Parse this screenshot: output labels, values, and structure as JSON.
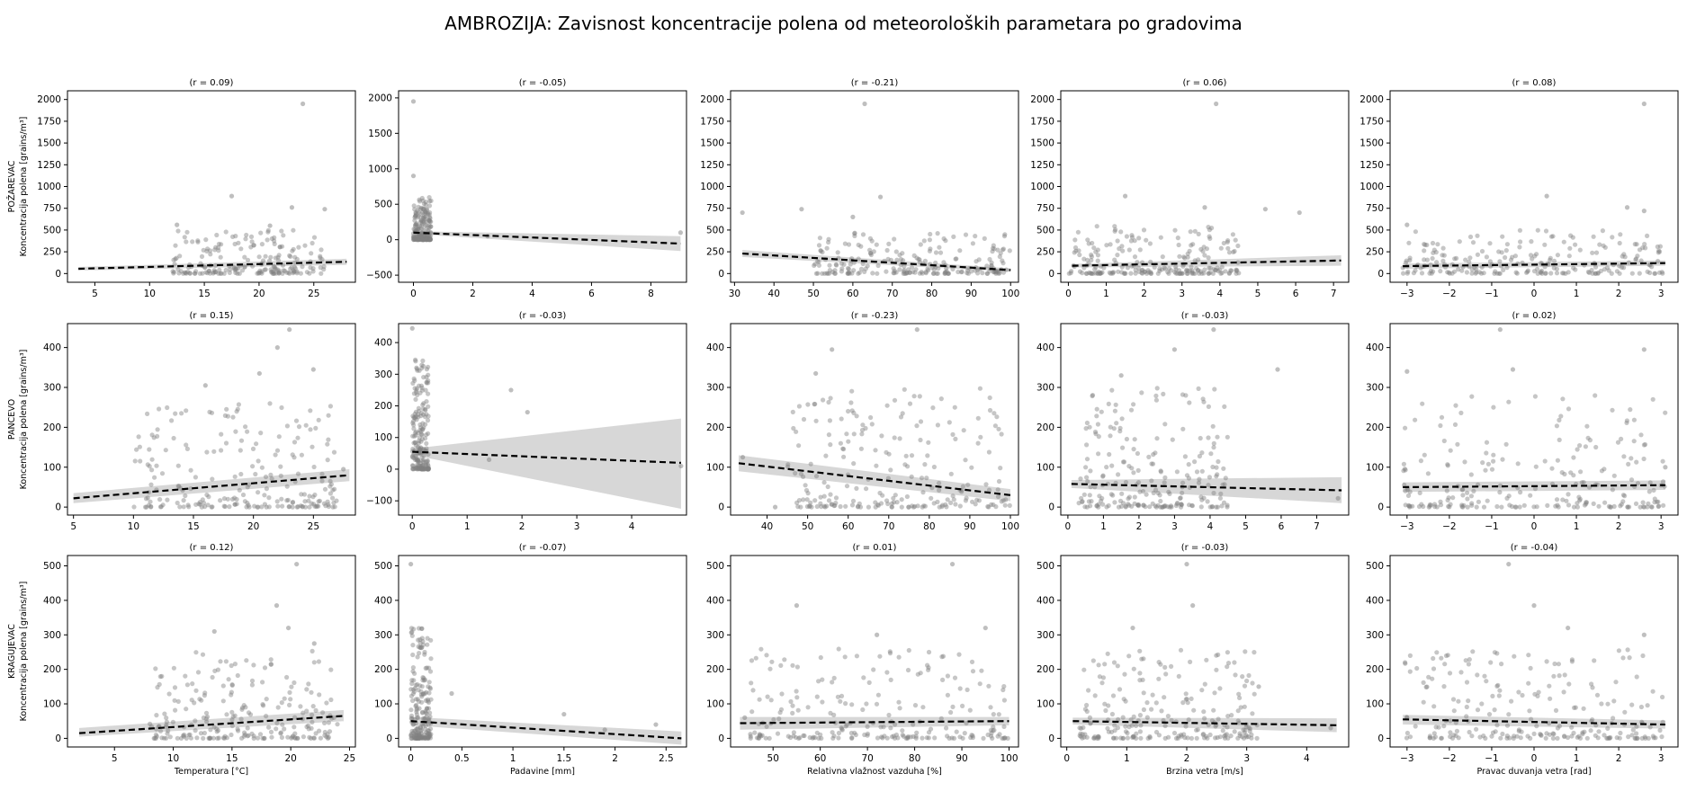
{
  "figure_title": "AMBROZIJA: Zavisnost koncentracije polena od meteoroloških parametara po gradovima",
  "colors": {
    "points": "#808080",
    "regression_line": "#000000",
    "confidence_band": "#d3d3d3"
  },
  "chart_data": [
    {
      "type": "scatter",
      "city": "POŽAREVAC",
      "ylabel": "Koncentracija polena [grains/m³]",
      "annotation": "(r = 0.09)",
      "xlim": [
        2.5,
        28.8
      ],
      "ylim": [
        -100,
        2100
      ],
      "xticks": [
        5,
        10,
        15,
        20,
        25
      ],
      "yticks": [
        0,
        250,
        500,
        750,
        1000,
        1250,
        1500,
        1750,
        2000
      ],
      "regression": {
        "x": [
          3.5,
          28
        ],
        "y": [
          55,
          135
        ]
      },
      "band": [
        35,
        75,
        100,
        170
      ],
      "outliers": [
        [
          24,
          1950
        ],
        [
          17.5,
          890
        ],
        [
          23,
          760
        ],
        [
          26,
          740
        ],
        [
          12.5,
          560
        ],
        [
          21,
          550
        ]
      ],
      "cloud": {
        "x": [
          12,
          26
        ],
        "y": [
          0,
          500
        ],
        "n": 200
      }
    },
    {
      "type": "scatter",
      "city": "POŽAREVAC",
      "ylabel": "",
      "annotation": "(r = -0.05)",
      "xlim": [
        -0.5,
        9.2
      ],
      "ylim": [
        -600,
        2100
      ],
      "xticks": [
        0,
        2,
        4,
        6,
        8
      ],
      "yticks": [
        -500,
        0,
        500,
        1000,
        1500,
        2000
      ],
      "regression": {
        "x": [
          0,
          9
        ],
        "y": [
          100,
          -55
        ]
      },
      "band": [
        80,
        120,
        -160,
        50
      ],
      "outliers": [
        [
          0,
          1950
        ],
        [
          0,
          900
        ],
        [
          9,
          100
        ],
        [
          2.5,
          50
        ]
      ],
      "cloud": {
        "x": [
          0,
          0.6
        ],
        "y": [
          0,
          600
        ],
        "n": 200
      }
    },
    {
      "type": "scatter",
      "city": "POŽAREVAC",
      "ylabel": "",
      "annotation": "(r = -0.21)",
      "xlim": [
        29,
        102
      ],
      "ylim": [
        -100,
        2100
      ],
      "xticks": [
        30,
        40,
        50,
        60,
        70,
        80,
        90,
        100
      ],
      "yticks": [
        0,
        250,
        500,
        750,
        1000,
        1250,
        1500,
        1750,
        2000
      ],
      "regression": {
        "x": [
          32,
          100
        ],
        "y": [
          230,
          40
        ]
      },
      "band": [
        190,
        270,
        20,
        60
      ],
      "outliers": [
        [
          63,
          1950
        ],
        [
          67,
          880
        ],
        [
          47,
          740
        ],
        [
          32,
          700
        ],
        [
          60,
          650
        ]
      ],
      "cloud": {
        "x": [
          50,
          100
        ],
        "y": [
          0,
          500
        ],
        "n": 220
      }
    },
    {
      "type": "scatter",
      "city": "POŽAREVAC",
      "ylabel": "",
      "annotation": "(r = 0.06)",
      "xlim": [
        -0.2,
        7.4
      ],
      "ylim": [
        -100,
        2100
      ],
      "xticks": [
        0,
        1,
        2,
        3,
        4,
        5,
        6,
        7
      ],
      "yticks": [
        0,
        250,
        500,
        750,
        1000,
        1250,
        1500,
        1750,
        2000
      ],
      "regression": {
        "x": [
          0.1,
          7.2
        ],
        "y": [
          90,
          150
        ]
      },
      "band": [
        70,
        110,
        90,
        210
      ],
      "outliers": [
        [
          3.9,
          1950
        ],
        [
          1.5,
          890
        ],
        [
          3.6,
          760
        ],
        [
          5.2,
          740
        ],
        [
          6.1,
          700
        ]
      ],
      "cloud": {
        "x": [
          0,
          4.5
        ],
        "y": [
          0,
          550
        ],
        "n": 220
      }
    },
    {
      "type": "scatter",
      "city": "POŽAREVAC",
      "ylabel": "",
      "annotation": "(r = 0.08)",
      "xlim": [
        -3.4,
        3.4
      ],
      "ylim": [
        -100,
        2100
      ],
      "xticks": [
        -3,
        -2,
        -1,
        0,
        1,
        2,
        3
      ],
      "yticks": [
        0,
        250,
        500,
        750,
        1000,
        1250,
        1500,
        1750,
        2000
      ],
      "regression": {
        "x": [
          -3.1,
          3.1
        ],
        "y": [
          85,
          120
        ]
      },
      "band": [
        55,
        115,
        90,
        150
      ],
      "outliers": [
        [
          2.6,
          1950
        ],
        [
          0.3,
          890
        ],
        [
          2.2,
          760
        ],
        [
          2.6,
          720
        ],
        [
          -3,
          560
        ]
      ],
      "cloud": {
        "x": [
          -3.1,
          3.1
        ],
        "y": [
          0,
          500
        ],
        "n": 220
      }
    },
    {
      "type": "scatter",
      "city": "PANCEVO",
      "ylabel": "Koncentracija polena [grains/m³]",
      "annotation": "(r = 0.15)",
      "xlim": [
        4.5,
        28.5
      ],
      "ylim": [
        -20,
        460
      ],
      "xticks": [
        5,
        10,
        15,
        20,
        25
      ],
      "yticks": [
        0,
        100,
        200,
        300,
        400
      ],
      "regression": {
        "x": [
          5,
          28
        ],
        "y": [
          22,
          80
        ]
      },
      "band": [
        10,
        35,
        65,
        95
      ],
      "outliers": [
        [
          23,
          445
        ],
        [
          22,
          400
        ],
        [
          25,
          345
        ],
        [
          16,
          305
        ],
        [
          20.5,
          335
        ],
        [
          27.5,
          95
        ]
      ],
      "cloud": {
        "x": [
          10,
          27
        ],
        "y": [
          0,
          260
        ],
        "n": 220
      }
    },
    {
      "type": "scatter",
      "city": "PANCEVO",
      "ylabel": "",
      "annotation": "(r = -0.03)",
      "xlim": [
        -0.25,
        5.0
      ],
      "ylim": [
        -145,
        460
      ],
      "xticks": [
        0,
        1,
        2,
        3,
        4
      ],
      "yticks": [
        -100,
        0,
        100,
        200,
        300,
        400
      ],
      "regression": {
        "x": [
          0,
          4.9
        ],
        "y": [
          55,
          20
        ]
      },
      "band": [
        45,
        65,
        -125,
        160
      ],
      "outliers": [
        [
          0,
          445
        ],
        [
          1.8,
          250
        ],
        [
          2.1,
          180
        ],
        [
          4.9,
          10
        ],
        [
          1.4,
          30
        ]
      ],
      "cloud": {
        "x": [
          0,
          0.3
        ],
        "y": [
          0,
          350
        ],
        "n": 200
      }
    },
    {
      "type": "scatter",
      "city": "PANCEVO",
      "ylabel": "",
      "annotation": "(r = -0.23)",
      "xlim": [
        31,
        102
      ],
      "ylim": [
        -20,
        460
      ],
      "xticks": [
        40,
        50,
        60,
        70,
        80,
        90,
        100
      ],
      "yticks": [
        0,
        100,
        200,
        300,
        400
      ],
      "regression": {
        "x": [
          33,
          100
        ],
        "y": [
          110,
          30
        ]
      },
      "band": [
        90,
        130,
        15,
        45
      ],
      "outliers": [
        [
          77,
          445
        ],
        [
          56,
          395
        ],
        [
          52,
          335
        ],
        [
          34,
          125
        ],
        [
          42,
          0
        ]
      ],
      "cloud": {
        "x": [
          45,
          100
        ],
        "y": [
          0,
          300
        ],
        "n": 220
      }
    },
    {
      "type": "scatter",
      "city": "PANCEVO",
      "ylabel": "",
      "annotation": "(r = -0.03)",
      "xlim": [
        -0.2,
        7.9
      ],
      "ylim": [
        -20,
        460
      ],
      "xticks": [
        0,
        1,
        2,
        3,
        4,
        5,
        6,
        7
      ],
      "yticks": [
        0,
        100,
        200,
        300,
        400
      ],
      "regression": {
        "x": [
          0.1,
          7.7
        ],
        "y": [
          58,
          42
        ]
      },
      "band": [
        48,
        68,
        10,
        75
      ],
      "outliers": [
        [
          4.1,
          445
        ],
        [
          3,
          395
        ],
        [
          5.9,
          345
        ],
        [
          1.5,
          330
        ],
        [
          7.6,
          22
        ]
      ],
      "cloud": {
        "x": [
          0.3,
          4.5
        ],
        "y": [
          0,
          300
        ],
        "n": 220
      }
    },
    {
      "type": "scatter",
      "city": "PANCEVO",
      "ylabel": "",
      "annotation": "(r = 0.02)",
      "xlim": [
        -3.4,
        3.4
      ],
      "ylim": [
        -20,
        460
      ],
      "xticks": [
        -3,
        -2,
        -1,
        0,
        1,
        2,
        3
      ],
      "yticks": [
        0,
        100,
        200,
        300,
        400
      ],
      "regression": {
        "x": [
          -3.1,
          3.1
        ],
        "y": [
          50,
          55
        ]
      },
      "band": [
        38,
        62,
        43,
        67
      ],
      "outliers": [
        [
          -0.8,
          445
        ],
        [
          2.6,
          395
        ],
        [
          -3,
          340
        ],
        [
          -0.5,
          345
        ],
        [
          3.1,
          100
        ]
      ],
      "cloud": {
        "x": [
          -3.1,
          3.1
        ],
        "y": [
          0,
          280
        ],
        "n": 220
      }
    },
    {
      "type": "scatter",
      "city": "KRAGUJEVAC",
      "ylabel": "Koncentracija polena [grains/m³]",
      "annotation": "(r = 0.12)",
      "xlim": [
        1,
        25.5
      ],
      "ylim": [
        -25,
        530
      ],
      "xticks": [
        5,
        10,
        15,
        20,
        25
      ],
      "yticks": [
        0,
        100,
        200,
        300,
        400,
        500
      ],
      "regression": {
        "x": [
          2,
          24.5
        ],
        "y": [
          15,
          65
        ]
      },
      "band": [
        5,
        30,
        50,
        82
      ],
      "outliers": [
        [
          20.5,
          505
        ],
        [
          18.8,
          385
        ],
        [
          13.5,
          310
        ],
        [
          19.8,
          320
        ],
        [
          22,
          275
        ]
      ],
      "cloud": {
        "x": [
          8,
          24
        ],
        "y": [
          0,
          260
        ],
        "n": 220
      }
    },
    {
      "type": "scatter",
      "city": "KRAGUJEVAC",
      "ylabel": "",
      "annotation": "(r = -0.07)",
      "xlim": [
        -0.12,
        2.7
      ],
      "ylim": [
        -25,
        530
      ],
      "xticks": [
        0,
        0.5,
        1,
        1.5,
        2,
        2.5
      ],
      "yticks": [
        0,
        100,
        200,
        300,
        400,
        500
      ],
      "regression": {
        "x": [
          0,
          2.65
        ],
        "y": [
          50,
          0
        ]
      },
      "band": [
        38,
        62,
        -18,
        20
      ],
      "outliers": [
        [
          0,
          505
        ],
        [
          0.4,
          130
        ],
        [
          1.5,
          70
        ],
        [
          2.4,
          40
        ],
        [
          1.9,
          25
        ]
      ],
      "cloud": {
        "x": [
          0,
          0.2
        ],
        "y": [
          0,
          320
        ],
        "n": 200
      }
    },
    {
      "type": "scatter",
      "city": "KRAGUJEVAC",
      "ylabel": "",
      "annotation": "(r = 0.01)",
      "xlim": [
        41,
        102
      ],
      "ylim": [
        -25,
        530
      ],
      "xticks": [
        50,
        60,
        70,
        80,
        90,
        100
      ],
      "yticks": [
        0,
        100,
        200,
        300,
        400,
        500
      ],
      "regression": {
        "x": [
          43,
          100
        ],
        "y": [
          44,
          50
        ]
      },
      "band": [
        25,
        62,
        38,
        62
      ],
      "outliers": [
        [
          88,
          505
        ],
        [
          55,
          385
        ],
        [
          95,
          320
        ],
        [
          72,
          300
        ],
        [
          44,
          60
        ]
      ],
      "cloud": {
        "x": [
          45,
          100
        ],
        "y": [
          0,
          260
        ],
        "n": 220
      }
    },
    {
      "type": "scatter",
      "city": "KRAGUJEVAC",
      "ylabel": "",
      "annotation": "(r = -0.03)",
      "xlim": [
        -0.1,
        4.7
      ],
      "ylim": [
        -25,
        530
      ],
      "xticks": [
        0,
        1,
        2,
        3,
        4
      ],
      "yticks": [
        0,
        100,
        200,
        300,
        400,
        500
      ],
      "regression": {
        "x": [
          0.1,
          4.5
        ],
        "y": [
          50,
          38
        ]
      },
      "band": [
        40,
        60,
        18,
        58
      ],
      "outliers": [
        [
          2,
          505
        ],
        [
          2.1,
          385
        ],
        [
          1.1,
          320
        ],
        [
          3.2,
          150
        ],
        [
          4.4,
          30
        ]
      ],
      "cloud": {
        "x": [
          0.2,
          3.2
        ],
        "y": [
          0,
          260
        ],
        "n": 220
      }
    },
    {
      "type": "scatter",
      "city": "KRAGUJEVAC",
      "ylabel": "",
      "annotation": "(r = -0.04)",
      "xlim": [
        -3.4,
        3.4
      ],
      "ylim": [
        -25,
        530
      ],
      "xticks": [
        -3,
        -2,
        -1,
        0,
        1,
        2,
        3
      ],
      "yticks": [
        0,
        100,
        200,
        300,
        400,
        500
      ],
      "regression": {
        "x": [
          -3.1,
          3.1
        ],
        "y": [
          55,
          40
        ]
      },
      "band": [
        40,
        68,
        28,
        52
      ],
      "outliers": [
        [
          -0.6,
          505
        ],
        [
          0,
          385
        ],
        [
          0.8,
          320
        ],
        [
          2.6,
          300
        ],
        [
          -3,
          60
        ]
      ],
      "cloud": {
        "x": [
          -3.1,
          3.1
        ],
        "y": [
          0,
          260
        ],
        "n": 220
      }
    }
  ],
  "column_xlabels": [
    "Temperatura [°C]",
    "Padavine [mm]",
    "Relativna vlažnost vazduha [%]",
    "Brzina vetra [m/s]",
    "Pravac duvanja vetra [rad]"
  ]
}
